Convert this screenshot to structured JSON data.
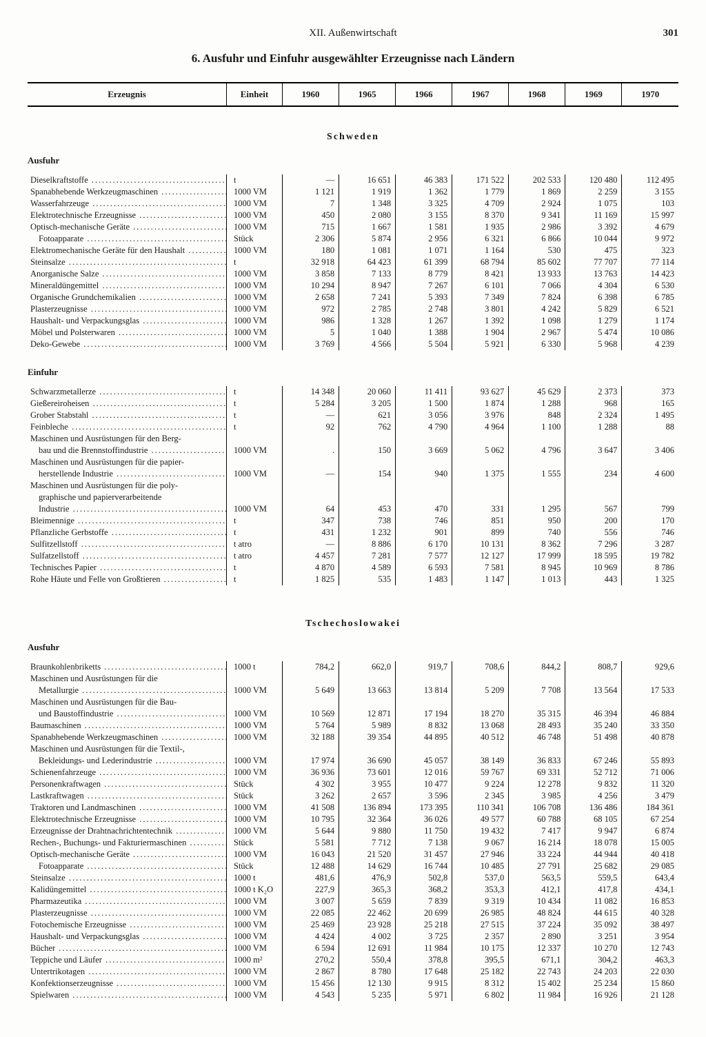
{
  "chapter": "XII. Außenwirtschaft",
  "page_number": "301",
  "title": "6. Ausfuhr und Einfuhr ausgewählter Erzeugnisse nach Ländern",
  "columns": [
    "Erzeugnis",
    "Einheit",
    "1960",
    "1965",
    "1966",
    "1967",
    "1968",
    "1969",
    "1970"
  ],
  "countries": [
    {
      "name": "Schweden",
      "sections": [
        {
          "direction": "Ausfuhr",
          "rows": [
            {
              "name": "Dieselkraftstoffe",
              "unit": "t",
              "vals": [
                "—",
                "16 651",
                "46 383",
                "171 522",
                "202 533",
                "120 480",
                "112 495"
              ]
            },
            {
              "name": "Spanabhebende Werkzeugmaschinen",
              "unit": "1000 VM",
              "vals": [
                "1 121",
                "1 919",
                "1 362",
                "1 779",
                "1 869",
                "2 259",
                "3 155"
              ]
            },
            {
              "name": "Wasserfahrzeuge",
              "unit": "1000 VM",
              "vals": [
                "7",
                "1 348",
                "3 325",
                "4 709",
                "2 924",
                "1 075",
                "103"
              ]
            },
            {
              "name": "Elektrotechnische Erzeugnisse",
              "unit": "1000 VM",
              "vals": [
                "450",
                "2 080",
                "3 155",
                "8 370",
                "9 341",
                "11 169",
                "15 997"
              ]
            },
            {
              "name": "Optisch-mechanische Geräte",
              "unit": "1000 VM",
              "vals": [
                "715",
                "1 667",
                "1 581",
                "1 935",
                "2 986",
                "3 392",
                "4 679"
              ]
            },
            {
              "name": "Fotoapparate",
              "indent": true,
              "unit": "Stück",
              "vals": [
                "2 306",
                "5 874",
                "2 956",
                "6 321",
                "6 866",
                "10 044",
                "9 972"
              ]
            },
            {
              "name": "Elektromechanische Geräte für den Haushalt",
              "unit": "1000 VM",
              "vals": [
                "180",
                "1 081",
                "1 071",
                "1 164",
                "530",
                "475",
                "323"
              ]
            },
            {
              "name": "Steinsalze",
              "unit": "t",
              "vals": [
                "32 918",
                "64 423",
                "61 399",
                "68 794",
                "85 602",
                "77 707",
                "77 114"
              ]
            },
            {
              "name": "Anorganische Salze",
              "unit": "1000 VM",
              "vals": [
                "3 858",
                "7 133",
                "8 779",
                "8 421",
                "13 933",
                "13 763",
                "14 423"
              ]
            },
            {
              "name": "Mineraldüngemittel",
              "unit": "1000 VM",
              "vals": [
                "10 294",
                "8 947",
                "7 267",
                "6 101",
                "7 066",
                "4 304",
                "6 530"
              ]
            },
            {
              "name": "Organische Grundchemikalien",
              "unit": "1000 VM",
              "vals": [
                "2 658",
                "7 241",
                "5 393",
                "7 349",
                "7 824",
                "6 398",
                "6 785"
              ]
            },
            {
              "name": "Plasterzeugnisse",
              "unit": "1000 VM",
              "vals": [
                "972",
                "2 785",
                "2 748",
                "3 801",
                "4 242",
                "5 829",
                "6 521"
              ]
            },
            {
              "name": "Haushalt- und Verpackungsglas",
              "unit": "1000 VM",
              "vals": [
                "986",
                "1 328",
                "1 267",
                "1 392",
                "1 098",
                "1 279",
                "1 174"
              ]
            },
            {
              "name": "Möbel und Polsterwaren",
              "unit": "1000 VM",
              "vals": [
                "5",
                "1 040",
                "1 388",
                "1 904",
                "2 967",
                "5 474",
                "10 086"
              ]
            },
            {
              "name": "Deko-Gewebe",
              "unit": "1000 VM",
              "vals": [
                "3 769",
                "4 566",
                "5 504",
                "5 921",
                "6 330",
                "5 968",
                "4 239"
              ]
            }
          ]
        },
        {
          "direction": "Einfuhr",
          "rows": [
            {
              "name": "Schwarzmetallerze",
              "unit": "t",
              "vals": [
                "14 348",
                "20 060",
                "11 411",
                "93 627",
                "45 629",
                "2 373",
                "373"
              ]
            },
            {
              "name": "Gießereiroheisen",
              "unit": "t",
              "vals": [
                "5 284",
                "3 205",
                "1 500",
                "1 874",
                "1 288",
                "968",
                "165"
              ]
            },
            {
              "name": "Grober Stabstahl",
              "unit": "t",
              "vals": [
                "—",
                "621",
                "3 056",
                "3 976",
                "848",
                "2 324",
                "1 495"
              ]
            },
            {
              "name": "Feinbleche",
              "unit": "t",
              "vals": [
                "92",
                "762",
                "4 790",
                "4 964",
                "1 100",
                "1 288",
                "88"
              ]
            },
            {
              "name": "Maschinen und Ausrüstungen für den Berg-",
              "nobord": true
            },
            {
              "name": "bau und die Brennstoffindustrie",
              "indent": true,
              "unit": "1000 VM",
              "vals": [
                ".",
                "150",
                "3 669",
                "5 062",
                "4 796",
                "3 647",
                "3 406"
              ]
            },
            {
              "name": "Maschinen und Ausrüstungen für die papier-",
              "nobord": true
            },
            {
              "name": "herstellende Industrie",
              "indent": true,
              "unit": "1000 VM",
              "vals": [
                "—",
                "154",
                "940",
                "1 375",
                "1 555",
                "234",
                "4 600"
              ]
            },
            {
              "name": "Maschinen und Ausrüstungen für die poly-",
              "nobord": true
            },
            {
              "name": "graphische und papierverarbeitende",
              "indent": true,
              "nobord": true
            },
            {
              "name": "Industrie",
              "indent": true,
              "unit": "1000 VM",
              "vals": [
                "64",
                "453",
                "470",
                "331",
                "1 295",
                "567",
                "799"
              ]
            },
            {
              "name": "Bleimennige",
              "unit": "t",
              "vals": [
                "347",
                "738",
                "746",
                "851",
                "950",
                "200",
                "170"
              ]
            },
            {
              "name": "Pflanzliche Gerbstoffe",
              "unit": "t",
              "vals": [
                "431",
                "1 232",
                "901",
                "899",
                "740",
                "556",
                "746"
              ]
            },
            {
              "name": "Sulfitzellstoff",
              "unit": "t atro",
              "vals": [
                "—",
                "8 886",
                "6 170",
                "10 131",
                "8 362",
                "7 296",
                "3 287"
              ]
            },
            {
              "name": "Sulfatzellstoff",
              "unit": "t atro",
              "vals": [
                "4 457",
                "7 281",
                "7 577",
                "12 127",
                "17 999",
                "18 595",
                "19 782"
              ]
            },
            {
              "name": "Technisches Papier",
              "unit": "t",
              "vals": [
                "4 870",
                "4 589",
                "6 593",
                "7 581",
                "8 945",
                "10 969",
                "8 786"
              ]
            },
            {
              "name": "Rohe Häute und Felle von Großtieren",
              "unit": "t",
              "vals": [
                "1 825",
                "535",
                "1 483",
                "1 147",
                "1 013",
                "443",
                "1 325"
              ]
            }
          ]
        }
      ]
    },
    {
      "name": "Tschechoslowakei",
      "sections": [
        {
          "direction": "Ausfuhr",
          "rows": [
            {
              "name": "Braunkohlenbriketts",
              "unit": "1000 t",
              "vals": [
                "784,2",
                "662,0",
                "919,7",
                "708,6",
                "844,2",
                "808,7",
                "929,6"
              ]
            },
            {
              "name": "Maschinen und Ausrüstungen für die",
              "nobord": true
            },
            {
              "name": "Metallurgie",
              "indent": true,
              "unit": "1000 VM",
              "vals": [
                "5 649",
                "13 663",
                "13 814",
                "5 209",
                "7 708",
                "13 564",
                "17 533"
              ]
            },
            {
              "name": "Maschinen und Ausrüstungen für die Bau-",
              "nobord": true
            },
            {
              "name": "und Baustoffindustrie",
              "indent": true,
              "unit": "1000 VM",
              "vals": [
                "10 569",
                "12 871",
                "17 194",
                "18 270",
                "35 315",
                "46 394",
                "46 884"
              ]
            },
            {
              "name": "Baumaschinen",
              "unit": "1000 VM",
              "vals": [
                "5 764",
                "5 989",
                "8 832",
                "13 068",
                "28 493",
                "35 240",
                "33 350"
              ]
            },
            {
              "name": "Spanabhebende Werkzeugmaschinen",
              "unit": "1000 VM",
              "vals": [
                "32 188",
                "39 354",
                "44 895",
                "40 512",
                "46 748",
                "51 498",
                "40 878"
              ]
            },
            {
              "name": "Maschinen und Ausrüstungen für die Textil-,",
              "nobord": true
            },
            {
              "name": "Bekleidungs- und Lederindustrie",
              "indent": true,
              "unit": "1000 VM",
              "vals": [
                "17 974",
                "36 690",
                "45 057",
                "38 149",
                "36 833",
                "67 246",
                "55 893"
              ]
            },
            {
              "name": "Schienenfahrzeuge",
              "unit": "1000 VM",
              "vals": [
                "36 936",
                "73 601",
                "12 016",
                "59 767",
                "69 331",
                "52 712",
                "71 006"
              ]
            },
            {
              "name": "Personenkraftwagen",
              "unit": "Stück",
              "vals": [
                "4 302",
                "3 955",
                "10 477",
                "9 224",
                "12 278",
                "9 832",
                "11 320"
              ]
            },
            {
              "name": "Lastkraftwagen",
              "unit": "Stück",
              "vals": [
                "3 262",
                "2 657",
                "3 596",
                "2 345",
                "3 985",
                "4 256",
                "3 479"
              ]
            },
            {
              "name": "Traktoren und Landmaschinen",
              "unit": "1000 VM",
              "vals": [
                "41 508",
                "136 894",
                "173 395",
                "110 341",
                "106 708",
                "136 486",
                "184 361"
              ]
            },
            {
              "name": "Elektrotechnische Erzeugnisse",
              "unit": "1000 VM",
              "vals": [
                "10 795",
                "32 364",
                "36 026",
                "49 577",
                "60 788",
                "68 105",
                "67 254"
              ]
            },
            {
              "name": "Erzeugnisse der Drahtnachrichtentechnik",
              "unit": "1000 VM",
              "vals": [
                "5 644",
                "9 880",
                "11 750",
                "19 432",
                "7 417",
                "9 947",
                "6 874"
              ]
            },
            {
              "name": "Rechen-, Buchungs- und Fakturiermaschinen",
              "unit": "Stück",
              "vals": [
                "5 581",
                "7 712",
                "7 138",
                "9 067",
                "16 214",
                "18 078",
                "15 005"
              ]
            },
            {
              "name": "Optisch-mechanische Geräte",
              "unit": "1000 VM",
              "vals": [
                "16 043",
                "21 520",
                "31 457",
                "27 946",
                "33 224",
                "44 944",
                "40 418"
              ]
            },
            {
              "name": "Fotoapparate",
              "indent": true,
              "unit": "Stück",
              "vals": [
                "12 488",
                "14 629",
                "16 744",
                "10 485",
                "27 791",
                "25 682",
                "29 085"
              ]
            },
            {
              "name": "Steinsalze",
              "unit": "1000 t",
              "vals": [
                "481,6",
                "476,9",
                "502,8",
                "537,0",
                "563,5",
                "559,5",
                "643,4"
              ]
            },
            {
              "name": "Kalidüngemittel",
              "unit": "1000 t K₂O",
              "vals": [
                "227,9",
                "365,3",
                "368,2",
                "353,3",
                "412,1",
                "417,8",
                "434,1"
              ]
            },
            {
              "name": "Pharmazeutika",
              "unit": "1000 VM",
              "vals": [
                "3 007",
                "5 659",
                "7 839",
                "9 319",
                "10 434",
                "11 082",
                "16 853"
              ]
            },
            {
              "name": "Plasterzeugnisse",
              "unit": "1000 VM",
              "vals": [
                "22 085",
                "22 462",
                "20 699",
                "26 985",
                "48 824",
                "44 615",
                "40 328"
              ]
            },
            {
              "name": "Fotochemische Erzeugnisse",
              "unit": "1000 VM",
              "vals": [
                "25 469",
                "23 928",
                "25 218",
                "27 515",
                "37 224",
                "35 092",
                "38 497"
              ]
            },
            {
              "name": "Haushalt- und Verpackungsglas",
              "unit": "1000 VM",
              "vals": [
                "4 424",
                "4 002",
                "3 725",
                "2 357",
                "2 890",
                "3 251",
                "3 954"
              ]
            },
            {
              "name": "Bücher",
              "unit": "1000 VM",
              "vals": [
                "6 594",
                "12 691",
                "11 984",
                "10 175",
                "12 337",
                "10 270",
                "12 743"
              ]
            },
            {
              "name": "Teppiche und Läufer",
              "unit": "1000 m²",
              "vals": [
                "270,2",
                "550,4",
                "378,8",
                "395,5",
                "671,1",
                "304,2",
                "463,3"
              ]
            },
            {
              "name": "Untertrikotagen",
              "unit": "1000 VM",
              "vals": [
                "2 867",
                "8 780",
                "17 648",
                "25 182",
                "22 743",
                "24 203",
                "22 030"
              ]
            },
            {
              "name": "Konfektionserzeugnisse",
              "unit": "1000 VM",
              "vals": [
                "15 456",
                "12 130",
                "9 915",
                "8 312",
                "15 402",
                "25 234",
                "15 860"
              ]
            },
            {
              "name": "Spielwaren",
              "unit": "1000 VM",
              "vals": [
                "4 543",
                "5 235",
                "5 971",
                "6 802",
                "11 984",
                "16 926",
                "21 128"
              ]
            }
          ]
        }
      ]
    }
  ]
}
